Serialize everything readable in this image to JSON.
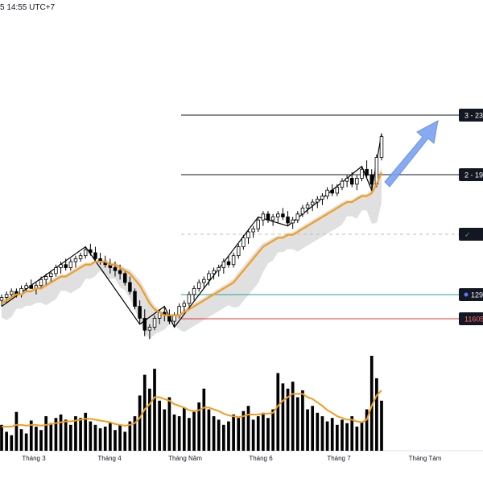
{
  "header": {
    "timestamp": "5 14:55 UTC+7"
  },
  "colors": {
    "candle_up": "#ffffff",
    "candle_down": "#000000",
    "candle_border": "#000000",
    "ma_line": "#f29d1e",
    "cloud": "#d6d6d6",
    "zigzag": "#000000",
    "arrow": "#7ba3f0",
    "target_line": "#131722",
    "entry_line": "#26a69a",
    "stop_line": "#e53935",
    "dashed_line": "#bdbdbd"
  },
  "levels": {
    "target3": {
      "label": "3 - 23"
    },
    "target2": {
      "label": "2 - 19"
    },
    "check": {
      "label": "✓"
    },
    "entry": {
      "label": "129"
    },
    "stop": {
      "label": "11605"
    }
  },
  "chart_data": {
    "type": "candlestick",
    "x_axis": {
      "ticks": [
        "Tháng 3",
        "Tháng 4",
        "Tháng Năm",
        "Tháng 6",
        "Tháng 7",
        "Tháng Tám"
      ]
    },
    "candles": [
      [
        109,
        111,
        107,
        110
      ],
      [
        110,
        112,
        108,
        111
      ],
      [
        111,
        113,
        110,
        112
      ],
      [
        112,
        113,
        110,
        111
      ],
      [
        111,
        114,
        110,
        113
      ],
      [
        113,
        115,
        112,
        114
      ],
      [
        114,
        116,
        113,
        113
      ],
      [
        113,
        115,
        111,
        114
      ],
      [
        114,
        117,
        113,
        116
      ],
      [
        116,
        118,
        114,
        117
      ],
      [
        117,
        119,
        115,
        118
      ],
      [
        118,
        121,
        117,
        120
      ],
      [
        120,
        122,
        118,
        121
      ],
      [
        121,
        123,
        119,
        120
      ],
      [
        120,
        123,
        119,
        122
      ],
      [
        122,
        124,
        120,
        123
      ],
      [
        123,
        125,
        122,
        124
      ],
      [
        124,
        127,
        123,
        126
      ],
      [
        126,
        128,
        124,
        125
      ],
      [
        125,
        127,
        122,
        123
      ],
      [
        123,
        125,
        121,
        122
      ],
      [
        122,
        124,
        120,
        121
      ],
      [
        121,
        123,
        118,
        120
      ],
      [
        120,
        122,
        117,
        119
      ],
      [
        119,
        121,
        116,
        118
      ],
      [
        118,
        119,
        114,
        115
      ],
      [
        115,
        117,
        111,
        112
      ],
      [
        112,
        113,
        106,
        107
      ],
      [
        107,
        109,
        101,
        103
      ],
      [
        103,
        106,
        97,
        99
      ],
      [
        99,
        101,
        96,
        100
      ],
      [
        100,
        104,
        99,
        103
      ],
      [
        103,
        106,
        101,
        105
      ],
      [
        105,
        107,
        102,
        104
      ],
      [
        104,
        106,
        101,
        102
      ],
      [
        102,
        105,
        100,
        104
      ],
      [
        104,
        108,
        103,
        107
      ],
      [
        107,
        109,
        105,
        108
      ],
      [
        108,
        112,
        107,
        111
      ],
      [
        111,
        114,
        109,
        113
      ],
      [
        113,
        116,
        112,
        115
      ],
      [
        115,
        117,
        113,
        116
      ],
      [
        116,
        119,
        114,
        118
      ],
      [
        118,
        120,
        116,
        119
      ],
      [
        119,
        121,
        117,
        120
      ],
      [
        120,
        123,
        118,
        122
      ],
      [
        122,
        124,
        120,
        121
      ],
      [
        121,
        125,
        120,
        124
      ],
      [
        124,
        128,
        123,
        127
      ],
      [
        127,
        131,
        126,
        130
      ],
      [
        130,
        133,
        128,
        132
      ],
      [
        132,
        134,
        130,
        133
      ],
      [
        133,
        137,
        132,
        136
      ],
      [
        136,
        139,
        134,
        138
      ],
      [
        138,
        139,
        135,
        136
      ],
      [
        136,
        138,
        134,
        137
      ],
      [
        137,
        139,
        135,
        138
      ],
      [
        138,
        140,
        136,
        137
      ],
      [
        137,
        139,
        134,
        135
      ],
      [
        135,
        137,
        133,
        136
      ],
      [
        136,
        139,
        135,
        138
      ],
      [
        138,
        141,
        137,
        140
      ],
      [
        140,
        142,
        138,
        141
      ],
      [
        141,
        143,
        139,
        142
      ],
      [
        142,
        144,
        140,
        143
      ],
      [
        143,
        145,
        141,
        144
      ],
      [
        144,
        147,
        143,
        146
      ],
      [
        146,
        148,
        144,
        145
      ],
      [
        145,
        148,
        144,
        147
      ],
      [
        147,
        150,
        146,
        149
      ],
      [
        149,
        151,
        147,
        150
      ],
      [
        150,
        152,
        147,
        148
      ],
      [
        148,
        151,
        146,
        150
      ],
      [
        150,
        154,
        149,
        153
      ],
      [
        153,
        156,
        150,
        151
      ],
      [
        151,
        153,
        146,
        148
      ],
      [
        148,
        158,
        147,
        157
      ],
      [
        157,
        165,
        156,
        164
      ]
    ],
    "moving_average": [
      108,
      109,
      110,
      111,
      111,
      112,
      112,
      113,
      113,
      114,
      115,
      116,
      117,
      117,
      118,
      119,
      120,
      121,
      121,
      122,
      122,
      122,
      121,
      121,
      120,
      119,
      118,
      116,
      114,
      111,
      108,
      106,
      105,
      104,
      104,
      104,
      104,
      105,
      106,
      107,
      108,
      109,
      110,
      111,
      112,
      113,
      114,
      115,
      117,
      119,
      121,
      123,
      125,
      127,
      128,
      129,
      130,
      130,
      131,
      131,
      132,
      133,
      134,
      135,
      136,
      137,
      138,
      139,
      140,
      141,
      142,
      142,
      143,
      144,
      144,
      145,
      148,
      152
    ],
    "volume": [
      30,
      22,
      18,
      45,
      25,
      20,
      35,
      28,
      24,
      40,
      32,
      38,
      42,
      36,
      30,
      40,
      38,
      44,
      34,
      30,
      26,
      28,
      32,
      24,
      30,
      22,
      34,
      40,
      64,
      88,
      72,
      95,
      58,
      48,
      62,
      42,
      40,
      50,
      38,
      45,
      56,
      72,
      48,
      40,
      36,
      30,
      34,
      42,
      38,
      46,
      52,
      36,
      40,
      44,
      38,
      48,
      90,
      78,
      72,
      80,
      62,
      70,
      48,
      52,
      44,
      40,
      34,
      38,
      30,
      36,
      32,
      40,
      28,
      34,
      48,
      110,
      84,
      58
    ],
    "volume_ma": [
      28,
      28,
      28,
      30,
      30,
      29,
      30,
      30,
      29,
      30,
      31,
      32,
      33,
      34,
      34,
      35,
      36,
      37,
      37,
      36,
      35,
      34,
      33,
      31,
      30,
      29,
      30,
      32,
      38,
      48,
      54,
      62,
      62,
      60,
      58,
      54,
      52,
      50,
      47,
      46,
      47,
      50,
      50,
      48,
      46,
      43,
      41,
      40,
      39,
      40,
      42,
      42,
      42,
      43,
      43,
      44,
      52,
      58,
      62,
      66,
      66,
      66,
      62,
      60,
      56,
      52,
      47,
      44,
      40,
      38,
      36,
      36,
      34,
      33,
      36,
      52,
      64,
      70
    ]
  }
}
